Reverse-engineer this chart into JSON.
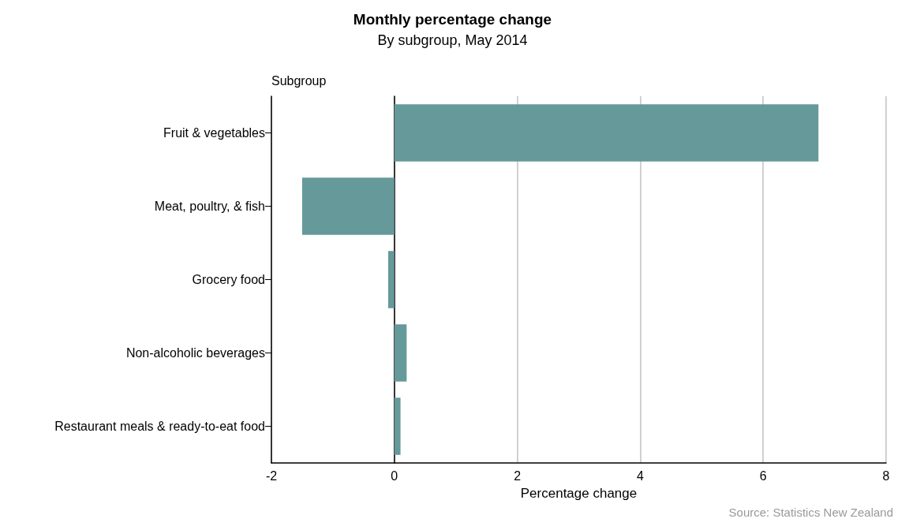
{
  "chart_data": {
    "type": "bar",
    "orientation": "horizontal",
    "title": "Monthly percentage change",
    "subtitle": "By subgroup, May 2014",
    "ylabel": "Subgroup",
    "xlabel": "Percentage change",
    "categories": [
      "Fruit & vegetables",
      "Meat, poultry, & fish",
      "Grocery food",
      "Non-alcoholic beverages",
      "Restaurant meals & ready-to-eat food"
    ],
    "values": [
      6.9,
      -1.5,
      -0.1,
      0.2,
      0.1
    ],
    "color": "#669999",
    "xlim": [
      -2,
      8
    ],
    "xticks": [
      -2,
      0,
      2,
      4,
      6,
      8
    ],
    "grid": "x",
    "annotations": [
      "Source: Statistics New Zealand"
    ]
  }
}
